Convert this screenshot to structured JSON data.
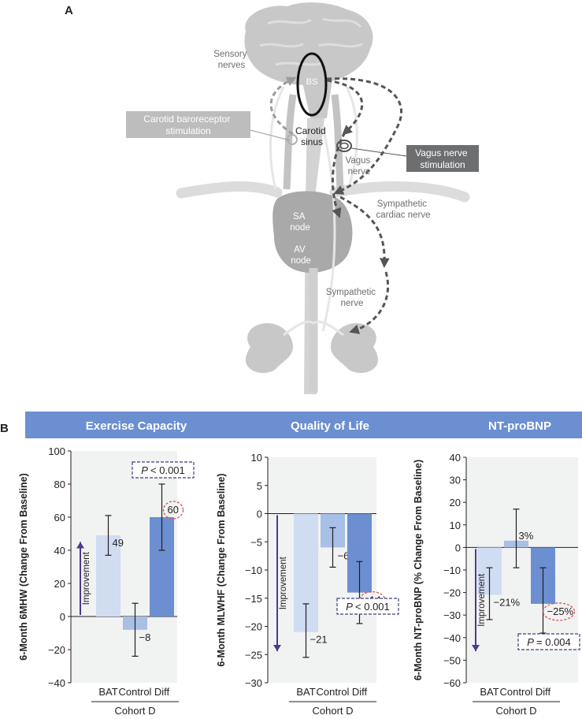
{
  "panel_a": {
    "label": "A",
    "labels": {
      "sensory": [
        "Sensory",
        "nerves"
      ],
      "bs": "BS",
      "carotid_sinus": [
        "Carotid",
        "sinus"
      ],
      "carotid_stim": [
        "Carotid baroreceptor",
        "stimulation"
      ],
      "vagus_stim": [
        "Vagus nerve",
        "stimulation"
      ],
      "vagus": [
        "Vagus",
        "nerve"
      ],
      "sympathetic_cardiac": [
        "Sympathetic",
        "cardiac nerve"
      ],
      "sa": [
        "SA",
        "node"
      ],
      "av": [
        "AV",
        "node"
      ],
      "sympathetic": [
        "Sympathetic",
        "nerve"
      ]
    },
    "colors": {
      "tissue": "#c8c8c8",
      "tissue_dark": "#a9a9a9",
      "nerve_light": "#e6e6e6",
      "arrow_dark": "#555555",
      "box_light": "#bdbdbd",
      "box_dark": "#6d6e70"
    }
  },
  "panel_b": {
    "label": "B",
    "banner_color": "#6b8fd0",
    "bar_colors": [
      "#cfdcf2",
      "#a8bfe6",
      "#6b8fd0"
    ],
    "improvement_arrow_color": "#4b3a8c",
    "improvement_label": "Improvement"
  },
  "chart_data": [
    {
      "type": "bar",
      "title": "Exercise Capacity",
      "ylabel": "6-Month 6MHW (Change From Baseline)",
      "categories": [
        "BAT",
        "Control",
        "Diff"
      ],
      "group_label": "Cohort D",
      "values": [
        49,
        -8,
        60
      ],
      "error_low": [
        37,
        -24,
        40
      ],
      "error_high": [
        61,
        8,
        80
      ],
      "value_labels": [
        "49",
        "−8",
        "60"
      ],
      "highlight_index": 2,
      "ylim": [
        -40,
        100
      ],
      "yticks": [
        -40,
        -20,
        0,
        20,
        40,
        60,
        80,
        100
      ],
      "ytick_labels": [
        "−40",
        "−20",
        "0",
        "20",
        "40",
        "60",
        "80",
        "100"
      ],
      "p_value": "< 0.001",
      "improvement_direction": "up"
    },
    {
      "type": "bar",
      "title": "Quality of Life",
      "ylabel": "6-Month MLWHF (Change From Baseline)",
      "categories": [
        "BAT",
        "Control",
        "Diff"
      ],
      "group_label": "Cohort D",
      "values": [
        -21,
        -6,
        -14
      ],
      "error_low": [
        -25.5,
        -9.5,
        -19.5
      ],
      "error_high": [
        -16,
        -2.5,
        -8.5
      ],
      "value_labels": [
        "−21",
        "−6",
        "−14"
      ],
      "highlight_index": 2,
      "ylim": [
        -30,
        10
      ],
      "yticks": [
        -30,
        -25,
        -20,
        -15,
        -10,
        -5,
        0,
        5,
        10
      ],
      "ytick_labels": [
        "−30",
        "−25",
        "−20",
        "−15",
        "−10",
        "−5",
        "0",
        "5",
        "10"
      ],
      "p_value": "< 0.001",
      "improvement_direction": "down"
    },
    {
      "type": "bar",
      "title": "NT-proBNP",
      "ylabel": "6-Month NT-proBNP (% Change From Baseline)",
      "categories": [
        "BAT",
        "Control",
        "Diff"
      ],
      "group_label": "Cohort D",
      "values": [
        -21,
        3,
        -25
      ],
      "error_low": [
        -32,
        -9,
        -38
      ],
      "error_high": [
        -9,
        17,
        -9
      ],
      "value_labels": [
        "−21%",
        "3%",
        "−25%"
      ],
      "highlight_index": 2,
      "ylim": [
        -60,
        40
      ],
      "yticks": [
        -60,
        -50,
        -40,
        -30,
        -20,
        -10,
        0,
        10,
        20,
        30,
        40
      ],
      "ytick_labels": [
        "−60",
        "−50",
        "−40",
        "−30",
        "−20",
        "−10",
        "0",
        "10",
        "20",
        "30",
        "40"
      ],
      "p_value": "= 0.004",
      "improvement_direction": "down"
    }
  ]
}
